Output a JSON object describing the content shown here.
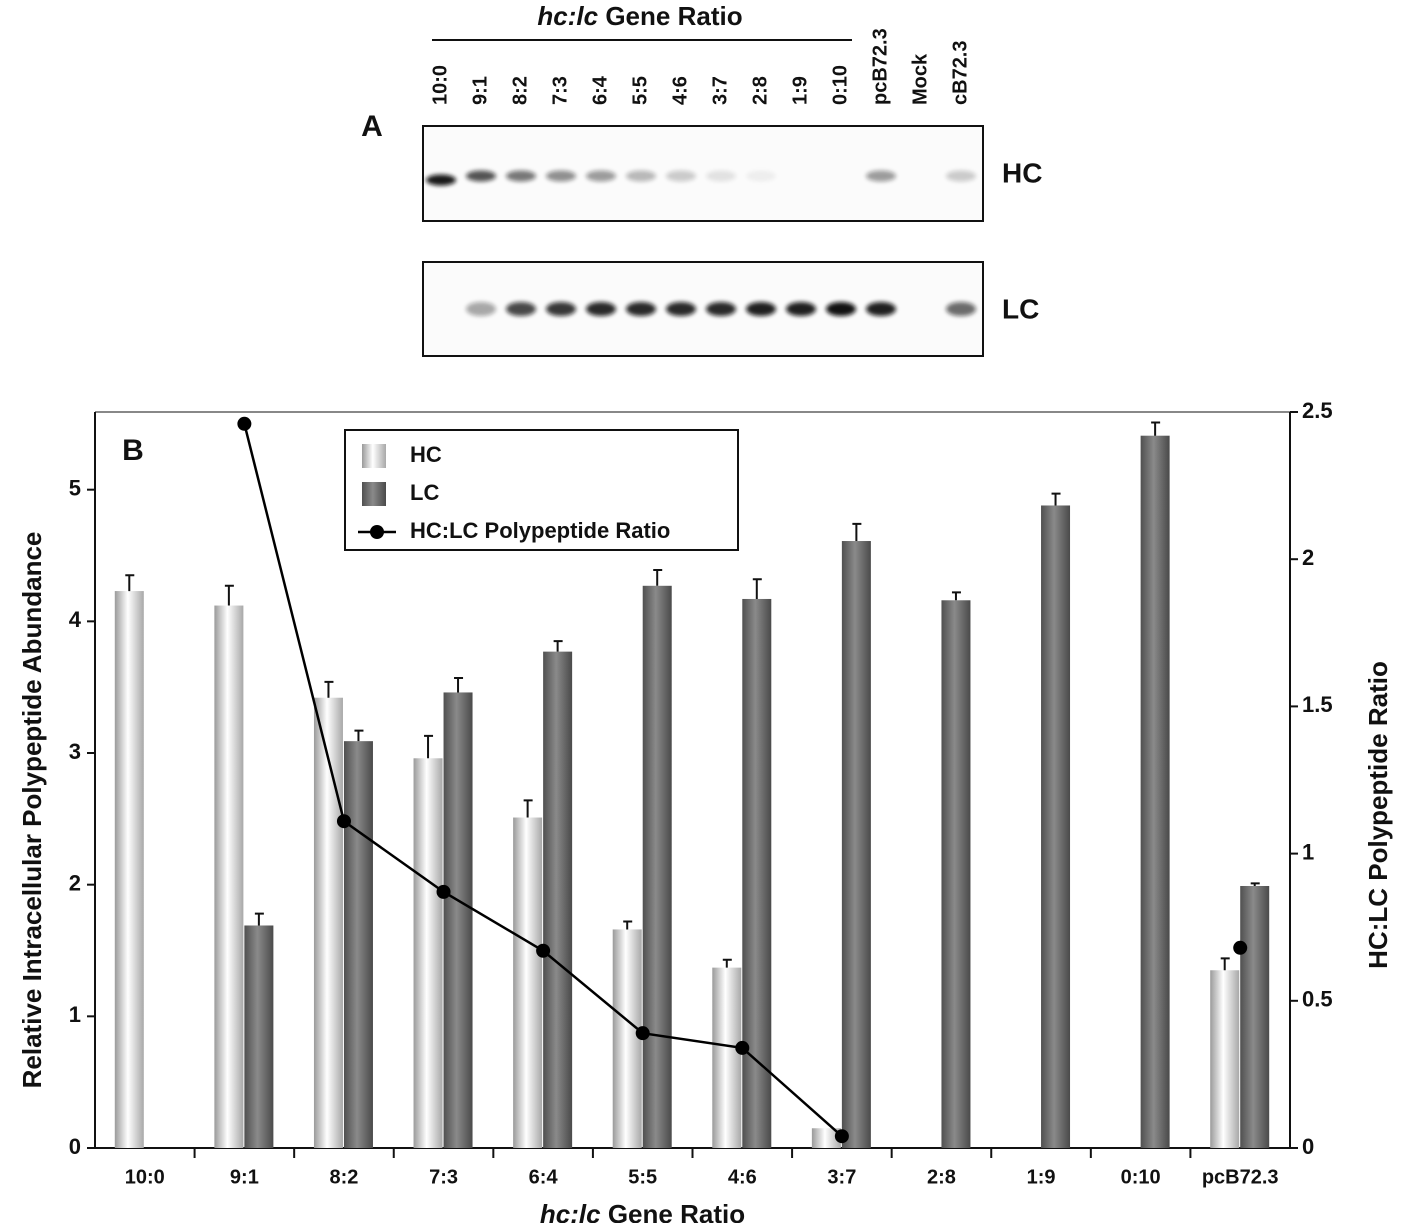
{
  "blot": {
    "label": "A",
    "title": "hc:lc Gene Ratio",
    "lanes": [
      "10:0",
      "9:1",
      "8:2",
      "7:3",
      "6:4",
      "5:5",
      "4:6",
      "3:7",
      "2:8",
      "1:9",
      "0:10",
      "pcB72.3",
      "Mock",
      "cB72.3"
    ],
    "rows": [
      "HC",
      "LC"
    ]
  },
  "chart_data": {
    "type": "bar",
    "panel_label": "B",
    "categories": [
      "10:0",
      "9:1",
      "8:2",
      "7:3",
      "6:4",
      "5:5",
      "4:6",
      "3:7",
      "2:8",
      "1:9",
      "0:10",
      "pcB72.3"
    ],
    "series": [
      {
        "name": "HC",
        "type": "bar",
        "color": "#d8d8d8",
        "values": [
          4.23,
          4.12,
          3.42,
          2.96,
          2.51,
          1.66,
          1.37,
          0.15,
          0,
          0,
          0,
          1.35
        ],
        "errors": [
          0.12,
          0.15,
          0.12,
          0.17,
          0.13,
          0.06,
          0.06,
          null,
          null,
          null,
          null,
          0.09
        ]
      },
      {
        "name": "LC",
        "type": "bar",
        "color": "#6e6e6e",
        "values": [
          0,
          1.69,
          3.09,
          3.46,
          3.77,
          4.27,
          4.17,
          4.61,
          4.16,
          4.88,
          5.41,
          1.99
        ],
        "errors": [
          null,
          0.09,
          0.08,
          0.11,
          0.08,
          0.12,
          0.15,
          0.13,
          0.06,
          0.09,
          0.1,
          0.02
        ]
      },
      {
        "name": "HC:LC Polypeptide Ratio",
        "type": "line",
        "axis": "y2",
        "color": "#000000",
        "values": [
          null,
          2.46,
          1.11,
          0.87,
          0.67,
          0.39,
          0.34,
          0.04,
          null,
          null,
          null,
          0.68
        ]
      }
    ],
    "x_label": "hc:lc Gene Ratio",
    "y_label": "Relative Intracellular Polypeptide Abundance",
    "y2_label": "HC:LC Polypeptide Ratio",
    "ylim": [
      0,
      5.59
    ],
    "yticks": [
      0,
      1,
      2,
      3,
      4,
      5
    ],
    "y2lim": [
      0,
      2.5
    ],
    "y2ticks": [
      0,
      0.5,
      1,
      1.5,
      2,
      2.5
    ],
    "legend": "upper left"
  }
}
